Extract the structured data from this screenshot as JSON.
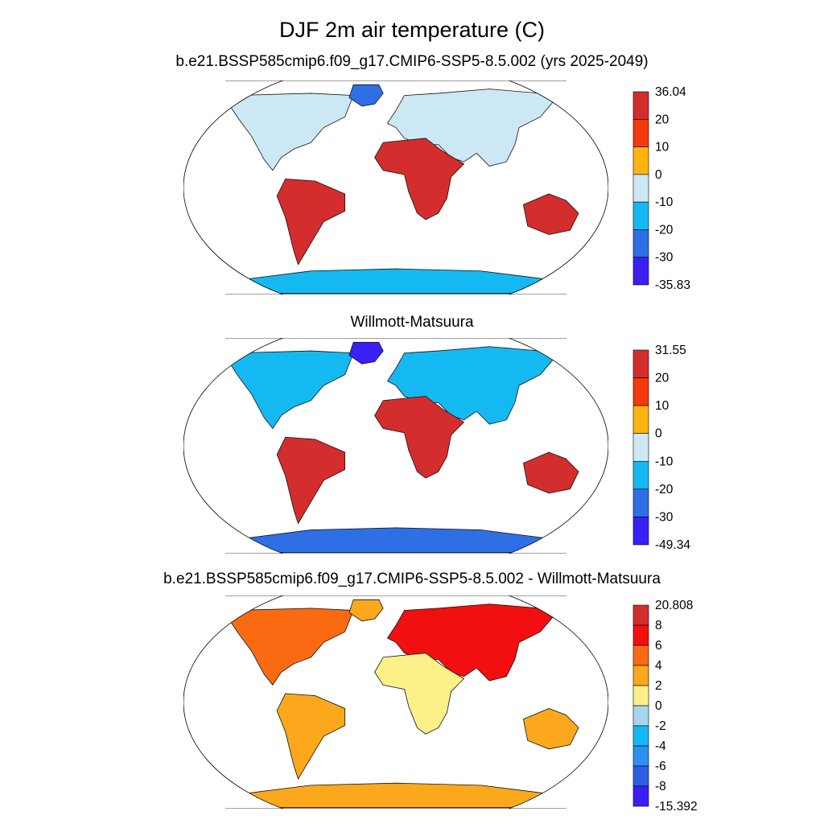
{
  "figure": {
    "title": "DJF 2m air temperature (C)",
    "panels": [
      {
        "id": "model",
        "title": "b.e21.BSSP585cmip6.f09_g17.CMIP6-SSP5-8.5.002 (yrs 2025-2049)",
        "colorbar": {
          "labels": [
            "36.04",
            "20",
            "10",
            "0",
            "-10",
            "-20",
            "-30",
            "-35.83"
          ],
          "colors": [
            "#d42d2d",
            "#f23a0c",
            "#ffb412",
            "#cce8f5",
            "#15b9f2",
            "#2e6fe6",
            "#3b1ff5"
          ]
        }
      },
      {
        "id": "obs",
        "title": "Willmott-Matsuura",
        "colorbar": {
          "labels": [
            "31.55",
            "20",
            "10",
            "0",
            "-10",
            "-20",
            "-30",
            "-49.34"
          ],
          "colors": [
            "#d42d2d",
            "#f23a0c",
            "#ffb412",
            "#cce8f5",
            "#15b9f2",
            "#2e6fe6",
            "#3b1ff5"
          ]
        }
      },
      {
        "id": "diff",
        "title": "b.e21.BSSP585cmip6.f09_g17.CMIP6-SSP5-8.5.002 - Willmott-Matsuura",
        "colorbar": {
          "labels": [
            "20.808",
            "8",
            "6",
            "4",
            "2",
            "0",
            "-2",
            "-4",
            "-6",
            "-8",
            "-15.392"
          ],
          "colors": [
            "#d42d2d",
            "#f20f0f",
            "#fa6a12",
            "#fba81c",
            "#fcf08a",
            "#a8d5ee",
            "#15b9f2",
            "#2e8ff0",
            "#2e5fe0",
            "#3b1ff5"
          ]
        }
      }
    ]
  }
}
